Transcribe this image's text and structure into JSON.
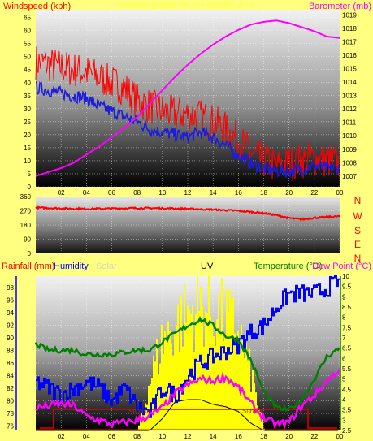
{
  "colors": {
    "background": "#ffff80",
    "wind_avg": "#1c1cdc",
    "wind_gust": "#ff0000",
    "barometer": "#ff00ff",
    "direction": "#ff0000",
    "compass": "#ff0000",
    "rain": "#ff0000",
    "humidity": "#0000ff",
    "solar": "#ffff00",
    "uv": "#000000",
    "temperature": "#008000",
    "dewpoint": "#ff00ff",
    "axis_right_text": "#a03c00",
    "solar_label": "#d6d6c6",
    "header_text": "#ffff40",
    "grid": "#ffffff"
  },
  "header": {
    "top_center": "Weather graphs for 14 February 2024"
  },
  "panels": {
    "wind": {
      "left_title": "Windspeed (kph)",
      "right_title": "Barometer (mb)"
    },
    "direction": {
      "compass": [
        "N",
        "W",
        "S",
        "E",
        "N"
      ]
    },
    "bottom": {
      "rain_title": "Rainfall (mm)",
      "humidity_title": "Humidity",
      "solar_title": "Solar",
      "uv_title": "UV",
      "temp_title": "Temperature (°C)",
      "dew_title": "Dew Point (°C)",
      "sunrise_label": "Sunrise",
      "sunset_label": "Sunset"
    }
  },
  "chart_data": [
    {
      "type": "line",
      "title": "Windspeed (kph) / Barometer (mb)",
      "x_label": "hour",
      "x_ticks": [
        "02",
        "04",
        "06",
        "08",
        "10",
        "12",
        "14",
        "16",
        "18",
        "20",
        "22",
        "00"
      ],
      "x": [
        0,
        1,
        2,
        3,
        4,
        5,
        6,
        7,
        8,
        9,
        10,
        11,
        12,
        13,
        14,
        15,
        16,
        17,
        18,
        19,
        20,
        21,
        22,
        23,
        24
      ],
      "y_left_ticks": [
        "0",
        "5",
        "10",
        "15",
        "20",
        "25",
        "30",
        "35",
        "40",
        "45",
        "50",
        "55",
        "60",
        "65"
      ],
      "ylim_left": [
        0,
        68
      ],
      "y_right_ticks": [
        "1007",
        "1008",
        "1009",
        "1010",
        "1011",
        "1012",
        "1013",
        "1014",
        "1015",
        "1016",
        "1017",
        "1018",
        "1019"
      ],
      "ylim_right": [
        1006.2,
        1019.4
      ],
      "series": [
        {
          "name": "Windspeed (kph)",
          "axis": "left",
          "values": [
            48,
            47,
            46,
            45,
            44,
            42,
            40,
            38,
            33,
            31,
            29,
            28,
            28,
            27,
            25,
            22,
            18,
            13,
            10,
            8,
            9,
            10,
            11,
            10,
            9
          ]
        },
        {
          "name": "",
          "axis": "left",
          "values": [
            38,
            37,
            36,
            35,
            34,
            31,
            29,
            27,
            25,
            22,
            21,
            20,
            19,
            21,
            19,
            16,
            12,
            9,
            7,
            6,
            6,
            7,
            8,
            7,
            7
          ]
        },
        {
          "name": "Barometer (mb)",
          "axis": "right",
          "values": [
            1007,
            1007.3,
            1007.6,
            1008.0,
            1008.6,
            1009.2,
            1009.9,
            1010.6,
            1011.4,
            1012.4,
            1013.4,
            1014.4,
            1015.3,
            1016.1,
            1016.8,
            1017.4,
            1017.9,
            1018.3,
            1018.5,
            1018.6,
            1018.4,
            1018.1,
            1017.8,
            1017.4,
            1017.3
          ]
        }
      ]
    },
    {
      "type": "line",
      "title": "",
      "x": [
        0,
        2,
        4,
        6,
        8,
        10,
        12,
        14,
        16,
        18,
        19,
        20,
        21,
        22,
        23,
        24
      ],
      "y_ticks": [
        "0",
        "90",
        "180",
        "270",
        "360"
      ],
      "ylim": [
        0,
        360
      ],
      "series": [
        {
          "name": "",
          "values": [
            290,
            285,
            282,
            284,
            287,
            286,
            282,
            277,
            270,
            255,
            242,
            224,
            215,
            225,
            230,
            235
          ]
        }
      ]
    },
    {
      "type": "line",
      "title": "Rainfall (mm) / Humidity / Solar / UV / Temperature (°C) / Dew Point (°C)",
      "x": [
        0,
        1,
        2,
        3,
        4,
        5,
        6,
        7,
        8,
        9,
        10,
        11,
        12,
        13,
        14,
        15,
        16,
        17,
        18,
        19,
        20,
        21,
        22,
        23,
        24
      ],
      "y_humidity_ticks": [
        "76",
        "78",
        "80",
        "82",
        "84",
        "86",
        "88",
        "90",
        "92",
        "94",
        "96",
        "98"
      ],
      "ylim_humidity": [
        75.3,
        99.8
      ],
      "y_temp_ticks": [
        "2.5",
        "3",
        "3.5",
        "4",
        "4.5",
        "5",
        "5.5",
        "6",
        "6.5",
        "7",
        "7.5",
        "8",
        "8.5",
        "9",
        "9.5",
        "10"
      ],
      "ylim_temp": [
        2.5,
        10
      ],
      "series": [
        {
          "name": "Humidity",
          "values": [
            83,
            82,
            81,
            82,
            83,
            82,
            80,
            82,
            79,
            78,
            82,
            81,
            84,
            86,
            87,
            88,
            89,
            91,
            92,
            95,
            97,
            97,
            97,
            98,
            99
          ]
        },
        {
          "name": "Temperature (°C)",
          "values": [
            6.7,
            6.4,
            6.4,
            6.4,
            6.2,
            6.2,
            6.2,
            6.3,
            6.4,
            6.4,
            6.8,
            7.2,
            7.6,
            7.9,
            7.6,
            7.1,
            6.9,
            5.9,
            4.4,
            3.6,
            3.5,
            4.0,
            5.0,
            6.1,
            6.5
          ]
        },
        {
          "name": "Dew Point (°C)",
          "values": [
            3.6,
            3.7,
            3.8,
            3.7,
            3.2,
            3.0,
            2.8,
            2.9,
            3.0,
            3.2,
            3.6,
            4.3,
            4.7,
            5.0,
            4.9,
            5.1,
            4.6,
            3.8,
            3.1,
            2.8,
            2.9,
            3.7,
            4.2,
            4.9,
            5.5
          ]
        },
        {
          "name": "Solar",
          "values": [
            0,
            0,
            0,
            0,
            0,
            0,
            0,
            0,
            0,
            40,
            70,
            80,
            90,
            95,
            90,
            85,
            75,
            40,
            0,
            0,
            0,
            0,
            0,
            0,
            0
          ]
        },
        {
          "name": "UV",
          "values": [
            0,
            0,
            0,
            0,
            0,
            0,
            0,
            0,
            0,
            0,
            0.5,
            1.2,
            1.3,
            1.3,
            1.1,
            1.0,
            0.8,
            0.3,
            0,
            0,
            0,
            0,
            0,
            0,
            0
          ]
        },
        {
          "name": "Rainfall (mm)",
          "values": [
            0,
            0,
            0,
            0,
            0,
            0,
            0,
            0,
            0,
            0,
            0,
            0,
            0,
            0,
            0,
            0,
            0,
            0,
            0,
            0,
            0,
            0,
            0,
            0,
            0
          ]
        }
      ]
    }
  ]
}
